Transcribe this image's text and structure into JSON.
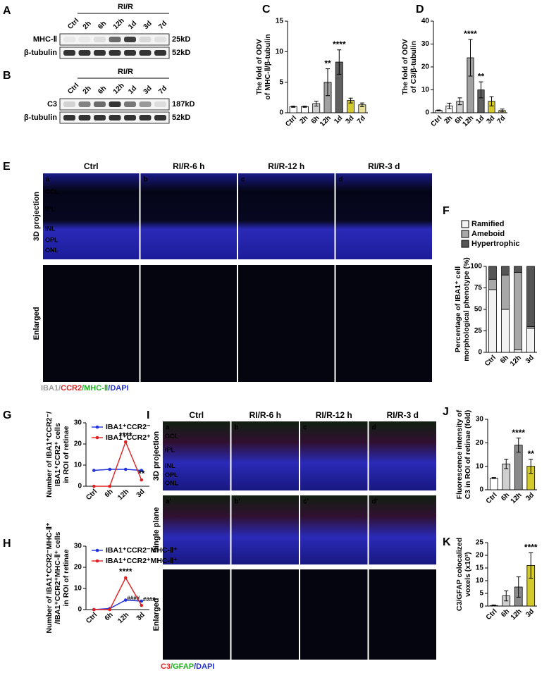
{
  "blots": [
    {
      "label": "A",
      "group": "RI/R",
      "lanes": [
        "Ctrl",
        "2h",
        "6h",
        "12h",
        "1d",
        "3d",
        "7d"
      ],
      "rows": [
        {
          "name": "MHC-Ⅱ",
          "size": "25kD"
        },
        {
          "name": "β-tubulin",
          "size": "52kD"
        }
      ]
    },
    {
      "label": "B",
      "group": "RI/R",
      "lanes": [
        "Ctrl",
        "2h",
        "6h",
        "12h",
        "1d",
        "3d",
        "7d"
      ],
      "rows": [
        {
          "name": "C3",
          "size": "187kD"
        },
        {
          "name": "β-tubulin",
          "size": "52kD"
        }
      ]
    }
  ],
  "panel_e": {
    "label": "E",
    "columns": [
      "Ctrl",
      "RI/R-6 h",
      "RI/R-12 h",
      "RI/R-3 d"
    ],
    "letters": [
      "a",
      "b",
      "c",
      "d"
    ],
    "layers": [
      "GCL",
      "IPL",
      "INL",
      "OPL",
      "ONL"
    ],
    "rows": [
      "3D projection",
      "Enlarged"
    ],
    "stain": [
      {
        "text": "IBA1/",
        "color": "#9a9a9a"
      },
      {
        "text": "CCR2",
        "color": "#e02020"
      },
      {
        "text": "/MHC-Ⅱ",
        "color": "#20b020"
      },
      {
        "text": "/DAPI",
        "color": "#2030d0"
      }
    ]
  },
  "panel_i": {
    "label": "I",
    "columns": [
      "Ctrl",
      "RI/R-6 h",
      "RI/R-12 h",
      "RI/R-3 d"
    ],
    "letters": [
      "a",
      "b",
      "c",
      "d"
    ],
    "letters2": [
      "a'",
      "b'",
      "c'",
      "d'"
    ],
    "layers": [
      "GCL",
      "IPL",
      "INL",
      "OPL",
      "ONL"
    ],
    "rows": [
      "3D projection",
      "Single plane",
      "Enlarged"
    ],
    "stain": [
      {
        "text": "C3",
        "color": "#e02020"
      },
      {
        "text": "/GFAP",
        "color": "#20b020"
      },
      {
        "text": "/DAPI",
        "color": "#2030d0"
      }
    ]
  },
  "chart_data": [
    {
      "type": "bar",
      "panel": "C",
      "ylabel": [
        "The fold of ODV",
        "of MHC-Ⅱ/β-tubulin"
      ],
      "categories": [
        "Ctrl",
        "2h",
        "6h",
        "12h",
        "1d",
        "3d",
        "7d"
      ],
      "values": [
        1,
        1,
        1.5,
        5,
        8.3,
        2,
        1.3
      ],
      "errors": [
        0.1,
        0.1,
        0.4,
        2.2,
        2,
        0.4,
        0.3
      ],
      "colors": [
        "#ffffff",
        "#ffffff",
        "#d0d0d0",
        "#a0a0a0",
        "#606060",
        "#d4c92a",
        "#e8e29c"
      ],
      "annotations": [
        null,
        null,
        null,
        "**",
        "****",
        null,
        null
      ],
      "ylim": [
        0,
        15
      ],
      "yticks": [
        0,
        5,
        10,
        15
      ]
    },
    {
      "type": "bar",
      "panel": "D",
      "ylabel": [
        "The fold of ODV",
        "of C3/β-tubulin"
      ],
      "categories": [
        "Ctrl",
        "2h",
        "6h",
        "12h",
        "1d",
        "3d",
        "7d"
      ],
      "values": [
        1,
        3,
        5,
        24,
        10,
        5,
        1
      ],
      "errors": [
        0.2,
        1.2,
        1.5,
        8,
        3.5,
        2,
        0.6
      ],
      "colors": [
        "#ffffff",
        "#ffffff",
        "#d0d0d0",
        "#a0a0a0",
        "#606060",
        "#d4c92a",
        "#e8e29c"
      ],
      "annotations": [
        null,
        null,
        null,
        "****",
        "**",
        null,
        null
      ],
      "ylim": [
        0,
        40
      ],
      "yticks": [
        0,
        10,
        20,
        30,
        40
      ]
    },
    {
      "type": "stacked_bar",
      "panel": "F",
      "ylabel": [
        "Percentage of IBA1⁺ cell",
        "morphological phenotype (%)"
      ],
      "categories": [
        "Ctrl",
        "6h",
        "12h",
        "3d"
      ],
      "series": [
        {
          "name": "Ramified",
          "color": "#f2f2f2",
          "values": [
            73,
            50,
            3,
            28
          ]
        },
        {
          "name": "Ameboid",
          "color": "#a8a8a8",
          "values": [
            12,
            40,
            90,
            2
          ]
        },
        {
          "name": "Hypertrophic",
          "color": "#555555",
          "values": [
            15,
            10,
            7,
            70
          ]
        }
      ],
      "ylim": [
        0,
        100
      ],
      "yticks": [
        0,
        25,
        50,
        75,
        100
      ]
    },
    {
      "type": "line",
      "panel": "G",
      "ylabel": [
        "Number of IBA1⁺CCR2⁻/",
        "IBA1⁺CCR2⁺ cells",
        "in ROI of retinae"
      ],
      "categories": [
        "Ctrl",
        "6h",
        "12h",
        "3d"
      ],
      "series": [
        {
          "name": "IBA1⁺CCR2⁻",
          "color": "#2233dd",
          "values": [
            7.5,
            8,
            8,
            7.5
          ],
          "annotations": [
            null,
            null,
            null,
            null
          ]
        },
        {
          "name": "IBA1⁺CCR2⁺",
          "color": "#e02020",
          "values": [
            0,
            0,
            21,
            3
          ],
          "annotations": [
            null,
            null,
            "****",
            "**"
          ]
        }
      ],
      "ylim": [
        0,
        30
      ],
      "yticks": [
        0,
        10,
        20,
        30
      ]
    },
    {
      "type": "line",
      "panel": "H",
      "ylabel": [
        "Number of IBA1⁺CCR2⁻MHC-Ⅱ⁺",
        "/IBA1⁺CCR2⁺MHC-Ⅱ⁺ cells",
        "in ROI of retinae"
      ],
      "categories": [
        "Ctrl",
        "6h",
        "12h",
        "3d"
      ],
      "series": [
        {
          "name": "IBA1⁺CCR2⁻MHC-Ⅱ⁺",
          "color": "#2233dd",
          "values": [
            0,
            0.5,
            4.5,
            4
          ],
          "annotations": [
            null,
            null,
            "####",
            "####"
          ]
        },
        {
          "name": "IBA1⁺CCR2⁺MHC-Ⅱ⁺",
          "color": "#e02020",
          "values": [
            0,
            0,
            15,
            2
          ],
          "annotations": [
            null,
            null,
            "****",
            null
          ]
        }
      ],
      "ylim": [
        0,
        30
      ],
      "yticks": [
        0,
        10,
        20,
        30
      ]
    },
    {
      "type": "bar",
      "panel": "J",
      "ylabel": [
        "Fluorescence intensity of",
        "C3 in ROI of retinae (fold)"
      ],
      "categories": [
        "Ctrl",
        "6h",
        "12h",
        "3d"
      ],
      "values": [
        5,
        11,
        19,
        10
      ],
      "errors": [
        0.2,
        2,
        3,
        3
      ],
      "colors": [
        "#ffffff",
        "#d0d0d0",
        "#8a8a8a",
        "#d4c92a"
      ],
      "annotations": [
        null,
        null,
        "****",
        "**"
      ],
      "ylim": [
        0,
        30
      ],
      "yticks": [
        0,
        10,
        20,
        30
      ]
    },
    {
      "type": "bar",
      "panel": "K",
      "ylabel": [
        "C3/GFAP colocalized",
        "voxels (x10³)"
      ],
      "categories": [
        "Ctrl",
        "6h",
        "12h",
        "3d"
      ],
      "values": [
        0.2,
        4,
        7.5,
        16
      ],
      "errors": [
        0.2,
        2,
        4,
        5
      ],
      "colors": [
        "#ffffff",
        "#d0d0d0",
        "#8a8a8a",
        "#d4c92a"
      ],
      "annotations": [
        null,
        null,
        null,
        "****"
      ],
      "ylim": [
        0,
        25
      ],
      "yticks": [
        0,
        5,
        10,
        15,
        20,
        25
      ]
    }
  ]
}
